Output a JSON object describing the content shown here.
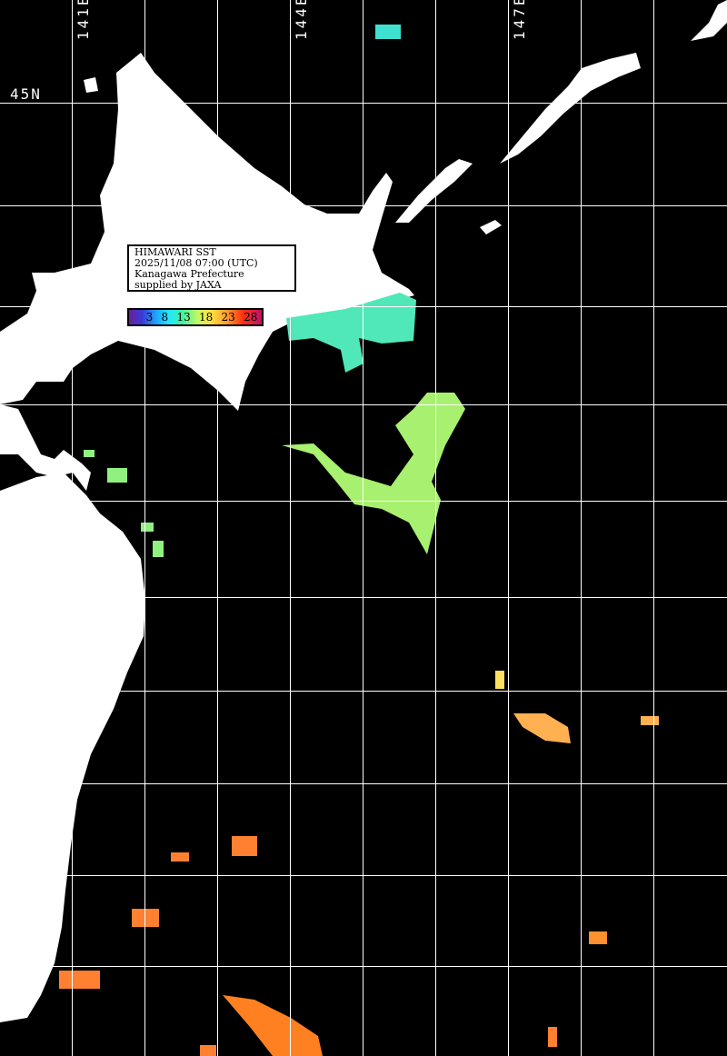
{
  "info": {
    "title": "HIMAWARI SST",
    "datetime": "2025/11/08 07:00 (UTC)",
    "region": "Kanagawa Prefecture",
    "credit": "supplied by JAXA"
  },
  "legend": {
    "ticks": [
      "3",
      "8",
      "13",
      "18",
      "23",
      "28"
    ],
    "colors": [
      "#6a1f9a",
      "#3a3ad8",
      "#1fa0ff",
      "#20e8ff",
      "#40f0a0",
      "#c8f860",
      "#ffe040",
      "#ff9a30",
      "#ff3010",
      "#c01070"
    ]
  },
  "grid": {
    "lon_labels": [
      "141E",
      "144E",
      "147E"
    ],
    "lat_labels": [
      "45N"
    ]
  },
  "colors": {
    "land": "#ffffff",
    "ocean_no_data": "#000000",
    "grid": "#ffffff"
  }
}
